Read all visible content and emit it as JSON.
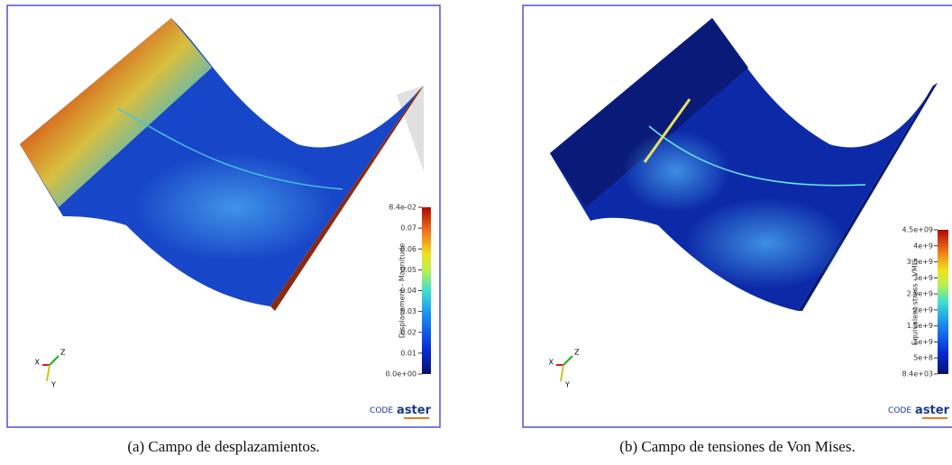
{
  "panels": [
    {
      "colorbar": {
        "title": "Displacement - Magnitude",
        "ticks": [
          "8.4e-02",
          "0.07",
          "0.06",
          "0.05",
          "0.04",
          "0.03",
          "0.02",
          "0.01",
          "0.0e+00"
        ]
      },
      "axes": [
        "X",
        "Y",
        "Z"
      ],
      "logo": {
        "prefix": "CODE",
        "name": "aster"
      },
      "caption": "(a) Campo de desplazamientos."
    },
    {
      "colorbar": {
        "title": "Equivalent stress - VMIS",
        "ticks": [
          "4.5e+09",
          "4e+9",
          "3.5e+9",
          "3e+9",
          "2.5e+9",
          "2e+9",
          "1.5e+9",
          "1e+9",
          "5e+8",
          "8.4e+03"
        ]
      },
      "axes": [
        "X",
        "Y",
        "Z"
      ],
      "logo": {
        "prefix": "CODE",
        "name": "aster"
      },
      "caption": "(b) Campo de tensiones de Von Mises."
    }
  ]
}
